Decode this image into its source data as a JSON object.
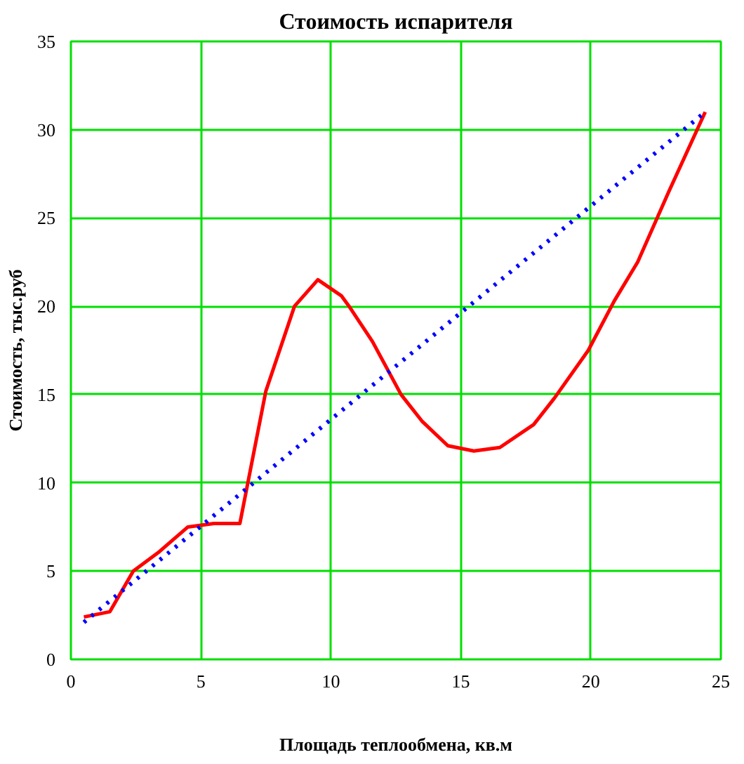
{
  "chart_data": {
    "type": "line",
    "title": "Стоимость испарителя",
    "xlabel": "Площадь теплообмена, кв.м",
    "ylabel": "Стоимость, тыс.руб",
    "xlim": [
      0,
      25
    ],
    "ylim": [
      0,
      35
    ],
    "xticks": [
      0,
      5,
      10,
      15,
      20,
      25
    ],
    "yticks": [
      0,
      5,
      10,
      15,
      20,
      25,
      30,
      35
    ],
    "grid": true,
    "series": [
      {
        "color": "#ff0000",
        "line_style": "solid",
        "x": [
          0.5,
          1.5,
          2.4,
          3.4,
          4.5,
          5.5,
          6.5,
          7.5,
          8.6,
          9.5,
          10.4,
          10.7,
          11.6,
          12.7,
          13.5,
          14.5,
          15.5,
          16.5,
          17.8,
          18.6,
          19.9,
          20.9,
          21.8,
          23.0,
          24.4
        ],
        "values": [
          2.4,
          2.7,
          5.0,
          6.1,
          7.5,
          7.7,
          7.7,
          15.2,
          20.0,
          21.5,
          20.6,
          20.0,
          18.0,
          15.0,
          13.5,
          12.1,
          11.8,
          12.0,
          13.3,
          14.8,
          17.5,
          20.3,
          22.5,
          26.5,
          31.0
        ]
      },
      {
        "color": "#0000ff",
        "line_style": "dotted",
        "x": [
          0.5,
          24.4
        ],
        "values": [
          2.1,
          31.0
        ]
      }
    ]
  }
}
